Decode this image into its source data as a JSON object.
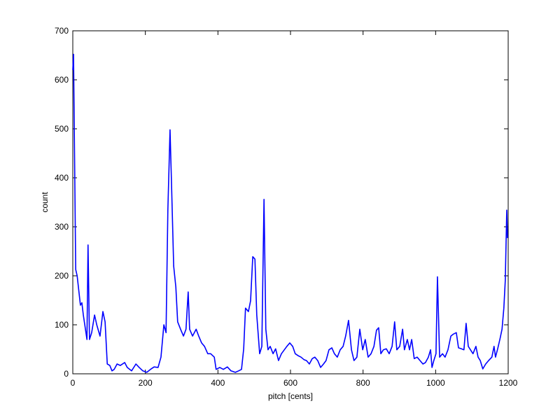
{
  "chart_data": {
    "type": "line",
    "xlabel": "pitch [cents]",
    "ylabel": "count",
    "x": [
      0,
      2,
      8,
      12,
      21,
      25,
      29,
      33,
      39,
      42,
      46,
      52,
      60,
      66,
      75,
      83,
      89,
      95,
      102,
      108,
      114,
      122,
      131,
      143,
      150,
      162,
      174,
      183,
      193,
      204,
      214,
      224,
      235,
      243,
      251,
      257,
      262,
      268,
      272,
      278,
      284,
      289,
      297,
      305,
      312,
      318,
      322,
      330,
      340,
      347,
      355,
      363,
      372,
      380,
      390,
      395,
      405,
      415,
      426,
      436,
      448,
      457,
      465,
      471,
      476,
      484,
      490,
      496,
      502,
      507,
      515,
      521,
      527,
      532,
      538,
      544,
      552,
      559,
      567,
      575,
      583,
      590,
      598,
      606,
      613,
      621,
      629,
      637,
      644,
      652,
      660,
      667,
      675,
      683,
      691,
      698,
      706,
      714,
      721,
      729,
      737,
      745,
      752,
      760,
      768,
      775,
      783,
      791,
      799,
      806,
      814,
      822,
      830,
      837,
      843,
      849,
      856,
      864,
      872,
      880,
      887,
      893,
      901,
      909,
      914,
      922,
      928,
      934,
      941,
      949,
      957,
      965,
      972,
      980,
      986,
      990,
      995,
      1001,
      1005,
      1011,
      1019,
      1026,
      1034,
      1042,
      1049,
      1057,
      1063,
      1071,
      1078,
      1084,
      1090,
      1096,
      1103,
      1111,
      1117,
      1123,
      1130,
      1138,
      1146,
      1155,
      1161,
      1165,
      1171,
      1177,
      1183,
      1188,
      1192,
      1196,
      1198
    ],
    "values": [
      620,
      652,
      213,
      200,
      140,
      145,
      120,
      100,
      70,
      263,
      70,
      84,
      120,
      100,
      77,
      127,
      106,
      20,
      17,
      6,
      9,
      20,
      17,
      23,
      13,
      6,
      20,
      13,
      6,
      3,
      9,
      14,
      13,
      34,
      100,
      84,
      334,
      498,
      390,
      220,
      177,
      106,
      91,
      77,
      91,
      167,
      91,
      77,
      91,
      77,
      63,
      56,
      41,
      41,
      34,
      9,
      13,
      9,
      14,
      6,
      3,
      6,
      9,
      51,
      134,
      127,
      149,
      239,
      234,
      120,
      41,
      56,
      356,
      91,
      49,
      56,
      41,
      51,
      27,
      41,
      49,
      56,
      63,
      56,
      41,
      37,
      34,
      29,
      27,
      20,
      31,
      34,
      27,
      13,
      20,
      27,
      49,
      53,
      41,
      34,
      49,
      56,
      77,
      109,
      49,
      27,
      34,
      91,
      49,
      70,
      34,
      41,
      56,
      89,
      94,
      41,
      49,
      51,
      41,
      56,
      106,
      49,
      56,
      91,
      49,
      70,
      49,
      70,
      31,
      34,
      27,
      20,
      23,
      34,
      49,
      13,
      27,
      41,
      198,
      34,
      41,
      34,
      49,
      77,
      81,
      84,
      53,
      51,
      49,
      103,
      56,
      49,
      41,
      56,
      34,
      27,
      10,
      20,
      27,
      34,
      56,
      34,
      51,
      70,
      91,
      134,
      191,
      334,
      277
    ],
    "color": "#0000ff",
    "xlim": [
      0,
      1200
    ],
    "xticks": [
      0,
      200,
      400,
      600,
      800,
      1000,
      1200
    ],
    "ylim": [
      0,
      700
    ],
    "yticks": [
      0,
      100,
      200,
      300,
      400,
      500,
      600,
      700
    ]
  }
}
